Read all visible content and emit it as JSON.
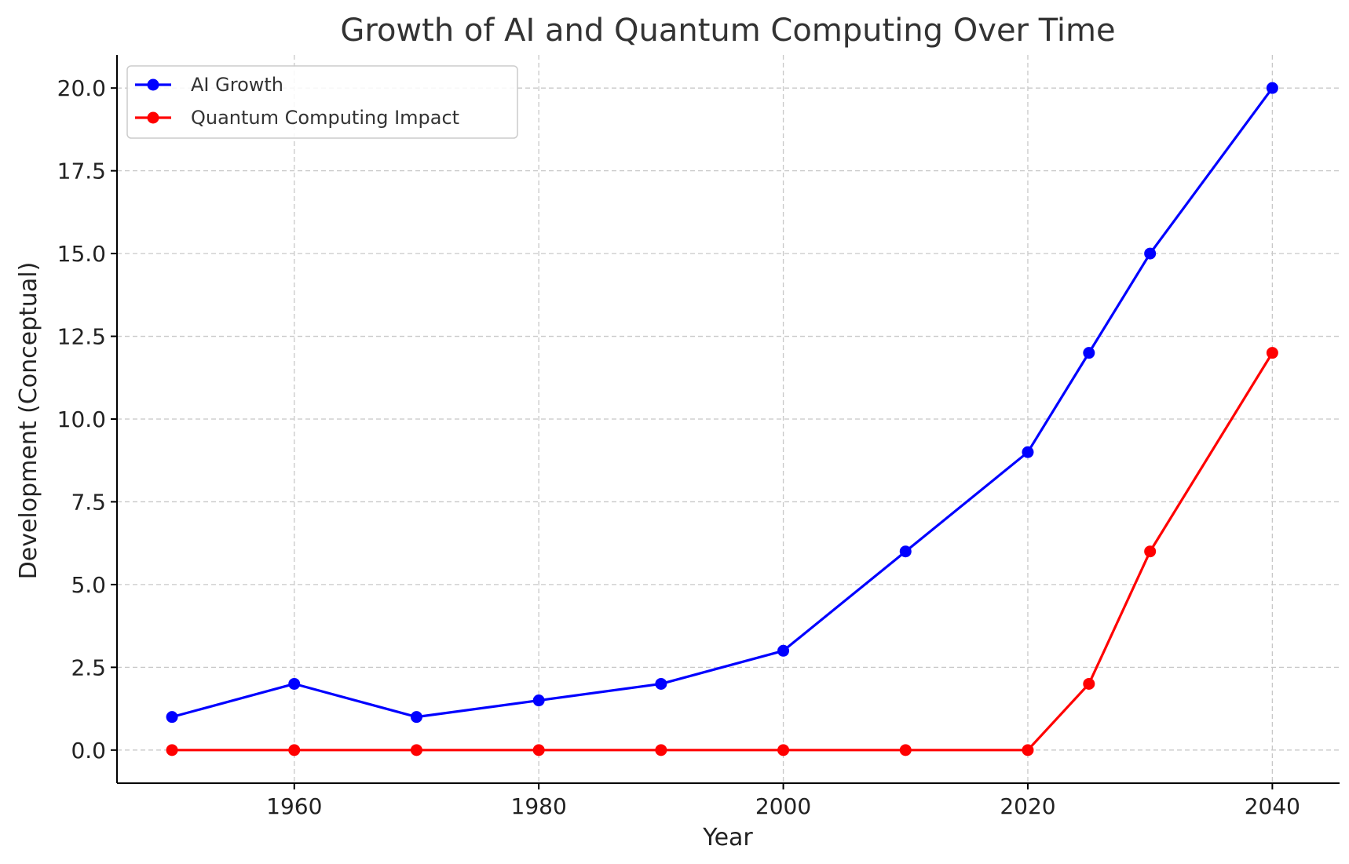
{
  "chart_data": {
    "type": "line",
    "title": "Growth of AI and Quantum Computing Over Time",
    "xlabel": "Year",
    "ylabel": "Development (Conceptual)",
    "xlim": [
      1945.5,
      2045.5
    ],
    "ylim": [
      -1.0,
      21.0
    ],
    "xticks": [
      1960,
      1980,
      2000,
      2020,
      2040
    ],
    "yticks": [
      0.0,
      2.5,
      5.0,
      7.5,
      10.0,
      12.5,
      15.0,
      17.5,
      20.0
    ],
    "grid": true,
    "legend_position": "top-left",
    "x": [
      1950,
      1960,
      1970,
      1980,
      1990,
      2000,
      2010,
      2020,
      2025,
      2030,
      2040
    ],
    "series": [
      {
        "name": "AI Growth",
        "color": "#0000ff",
        "values": [
          1,
          2,
          1,
          1.5,
          2,
          3,
          6,
          9,
          12,
          15,
          20
        ]
      },
      {
        "name": "Quantum Computing Impact",
        "color": "#ff0000",
        "values": [
          0,
          0,
          0,
          0,
          0,
          0,
          0,
          0,
          2,
          6,
          12
        ]
      }
    ]
  }
}
